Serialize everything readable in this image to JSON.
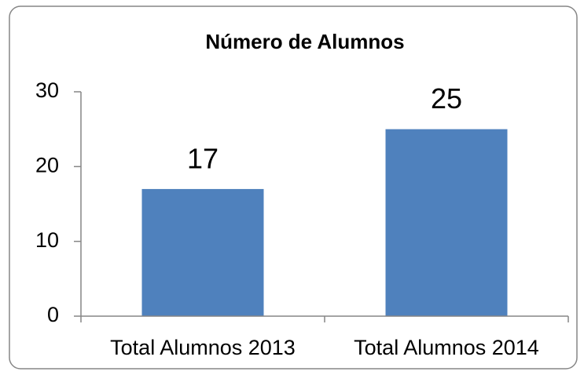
{
  "chart_data": {
    "type": "bar",
    "title": "Número de Alumnos",
    "categories": [
      "Total Alumnos 2013",
      "Total Alumnos 2014"
    ],
    "values": [
      17,
      25
    ],
    "color": "#4f81bd",
    "ylim": [
      0,
      30
    ],
    "yticks": [
      0,
      10,
      20,
      30
    ],
    "grid": false,
    "data_labels": true
  }
}
